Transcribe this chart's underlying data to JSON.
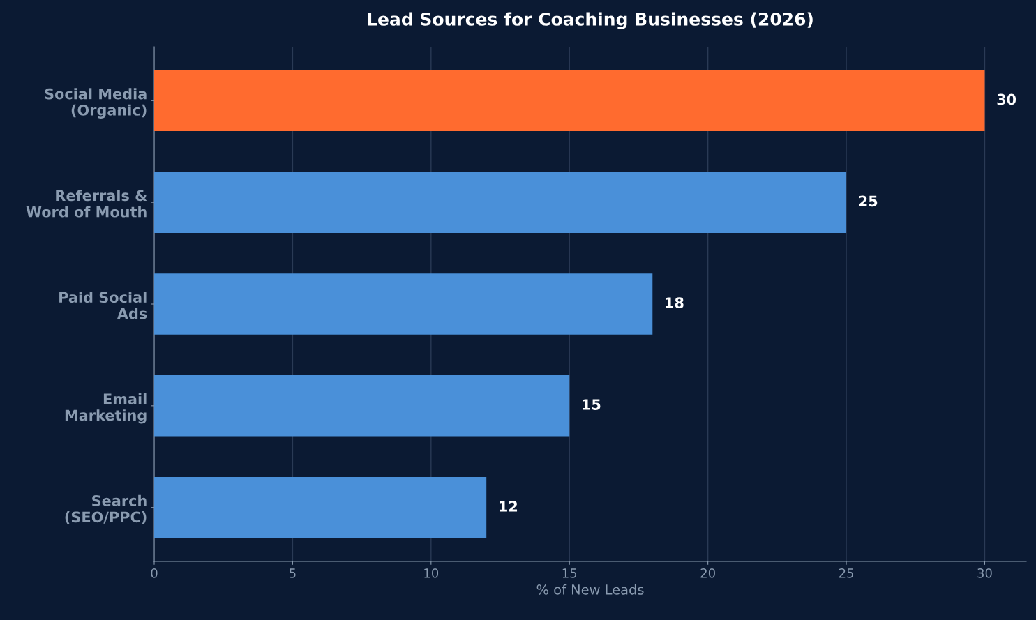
{
  "chart_data": {
    "type": "bar",
    "orientation": "horizontal",
    "title": "Lead Sources for Coaching Businesses (2026)",
    "xlabel": "% of New Leads",
    "categories": [
      "Social Media\n(Organic)",
      "Referrals &\nWord of Mouth",
      "Paid Social\nAds",
      "Email\nMarketing",
      "Search\n(SEO/PPC)"
    ],
    "values": [
      30,
      25,
      18,
      15,
      12
    ],
    "colors": [
      "#ff6b2f",
      "#4a90d9",
      "#4a90d9",
      "#4a90d9",
      "#4a90d9"
    ],
    "xlim": [
      0,
      31.5
    ],
    "xticks": [
      0,
      5,
      10,
      15,
      20,
      25,
      30
    ],
    "grid": "x",
    "data_labels": true,
    "legend": false
  }
}
